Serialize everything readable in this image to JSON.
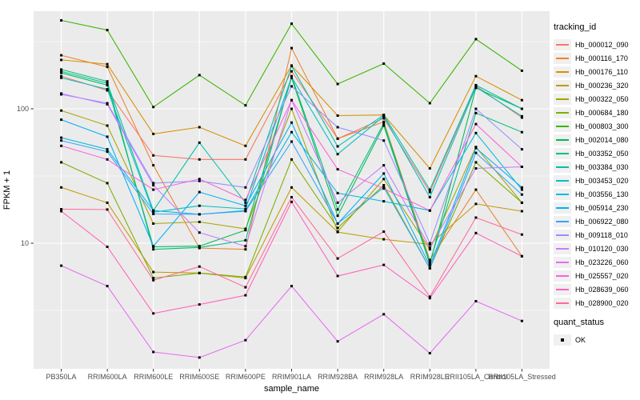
{
  "chart_data": {
    "type": "line",
    "xlabel": "sample_name",
    "ylabel": "FPKM + 1",
    "y_scale": "log10",
    "y_ticks": [
      10,
      100
    ],
    "y_minor_ticks": [
      3.162,
      31.62,
      316.2
    ],
    "ylim": [
      1.15,
      560
    ],
    "grid": "on",
    "panel_bg": "#ebebeb",
    "grid_color": "#ffffff",
    "axis_text_color": "#4d4d4d",
    "tick_color": "#333333",
    "point_color": "#000000",
    "point_shape": "square",
    "x_categories": [
      "PB350LA",
      "RRIM600LA",
      "RRIM600LE",
      "RRIM600SE",
      "RRIM600PE",
      "RRIM901LA",
      "RRIM928BA",
      "RRIM928LA",
      "RRIM928LE",
      "RRII105LA_Control",
      "RRII105LA_Stressed"
    ],
    "legend": {
      "title": "tracking_id",
      "position": "right"
    },
    "quant_legend": {
      "title": "quant_status",
      "items": [
        {
          "label": "OK",
          "marker": "square",
          "color": "#000000"
        }
      ]
    },
    "series": [
      {
        "name": "Hb_000012_090",
        "color": "#F8766D",
        "values": [
          175,
          137,
          45,
          42,
          42,
          190,
          60,
          85,
          24,
          148,
          86
        ]
      },
      {
        "name": "Hb_000116_170",
        "color": "#EA8331",
        "values": [
          250,
          205,
          38,
          9.2,
          9.0,
          283,
          60,
          80,
          7.5,
          25,
          8.0
        ]
      },
      {
        "name": "Hb_000176_110",
        "color": "#D89000",
        "values": [
          231,
          215,
          65,
          73,
          53,
          210,
          89,
          90,
          36,
          175,
          116
        ]
      },
      {
        "name": "Hb_000236_320",
        "color": "#C09B00",
        "values": [
          26,
          20,
          6.1,
          6.0,
          5.5,
          26,
          12.1,
          10.7,
          9.8,
          19.6,
          17.3
        ]
      },
      {
        "name": "Hb_000322_050",
        "color": "#A3A500",
        "values": [
          97,
          75,
          14,
          14.4,
          12.8,
          100,
          12.2,
          30,
          9.0,
          52,
          20
        ]
      },
      {
        "name": "Hb_000684_180",
        "color": "#7CAE00",
        "values": [
          40,
          28,
          5.5,
          6.0,
          5.6,
          42,
          13,
          27,
          6.5,
          40,
          20
        ]
      },
      {
        "name": "Hb_000803_300",
        "color": "#39B600",
        "values": [
          455,
          385,
          103,
          178,
          106,
          430,
          153,
          217,
          110,
          330,
          192
        ]
      },
      {
        "name": "Hb_002014_080",
        "color": "#00BB4E",
        "values": [
          185,
          150,
          9.4,
          9.5,
          12.5,
          170,
          16,
          75,
          7.0,
          143,
          100
        ]
      },
      {
        "name": "Hb_003352_050",
        "color": "#00BF7D",
        "values": [
          196,
          160,
          9.0,
          9.3,
          10.5,
          175,
          17.8,
          78,
          7.2,
          93,
          67
        ]
      },
      {
        "name": "Hb_003384_030",
        "color": "#00C1A3",
        "values": [
          190,
          155,
          17.5,
          56,
          20,
          208,
          52.5,
          90,
          25,
          150,
          100
        ]
      },
      {
        "name": "Hb_003453_020",
        "color": "#00BFC4",
        "values": [
          170,
          140,
          17,
          19,
          18,
          172,
          46,
          88,
          22,
          145,
          88
        ]
      },
      {
        "name": "Hb_003556_130",
        "color": "#00BAE0",
        "values": [
          61,
          50,
          17.5,
          16.4,
          17.5,
          67,
          23.6,
          20.5,
          17.5,
          66,
          25
        ]
      },
      {
        "name": "Hb_005914_230",
        "color": "#00B0F6",
        "values": [
          83,
          62,
          9.5,
          24,
          19,
          79,
          14,
          33,
          6.8,
          51,
          26
        ]
      },
      {
        "name": "Hb_006922_080",
        "color": "#35A2FF",
        "values": [
          58,
          48,
          16.5,
          16.4,
          17.3,
          57,
          14,
          26,
          6.5,
          47,
          23
        ]
      },
      {
        "name": "Hb_009118_010",
        "color": "#9590FF",
        "values": [
          128,
          110,
          28,
          29,
          26,
          147,
          73,
          58,
          10,
          100,
          50
        ]
      },
      {
        "name": "Hb_010120_030",
        "color": "#C77CFF",
        "values": [
          130,
          108,
          27,
          12.0,
          9.5,
          116,
          20,
          38,
          9.3,
          36,
          37
        ]
      },
      {
        "name": "Hb_023226_060",
        "color": "#E76BF3",
        "values": [
          6.8,
          4.8,
          1.55,
          1.41,
          1.9,
          4.8,
          1.86,
          2.96,
          1.52,
          3.7,
          2.64
        ]
      },
      {
        "name": "Hb_025557_020",
        "color": "#FA62DB",
        "values": [
          53,
          42,
          25,
          30,
          21,
          116,
          35.5,
          25.5,
          17.5,
          77,
          37
        ]
      },
      {
        "name": "Hb_028639_060",
        "color": "#FF62BC",
        "values": [
          17.3,
          9.4,
          3.0,
          3.5,
          4.1,
          20.3,
          5.7,
          6.9,
          3.9,
          11.9,
          8.0
        ]
      },
      {
        "name": "Hb_028900_020",
        "color": "#FF6A98",
        "values": [
          17.9,
          17.8,
          5.3,
          6.7,
          4.7,
          22,
          7.7,
          12.2,
          4.0,
          15.5,
          11.6
        ]
      }
    ]
  }
}
